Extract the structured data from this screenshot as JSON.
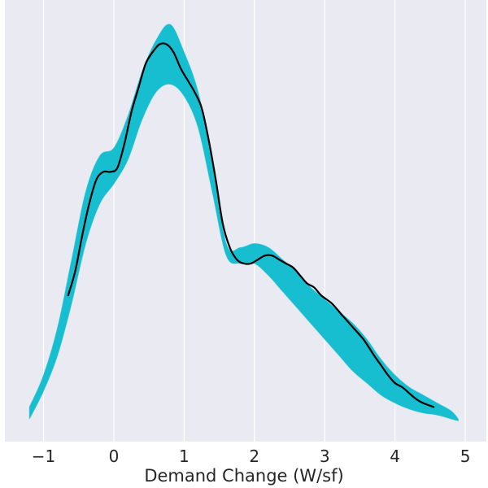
{
  "chart_data": {
    "type": "line",
    "title": "",
    "xlabel": "Demand Change (W/sf)",
    "ylabel": "",
    "xlim": [
      -1.55,
      5.3
    ],
    "ylim": [
      0,
      1
    ],
    "x_ticks": [
      -1,
      0,
      1,
      2,
      3,
      4,
      5
    ],
    "x_tick_labels": [
      "−1",
      "0",
      "1",
      "2",
      "3",
      "4",
      "5"
    ],
    "grid": true,
    "y_axis_ticks_visible": false,
    "colors": {
      "background": "#eaeaf2",
      "grid": "#ffffff",
      "band": "#17becf",
      "main_line": "#000000",
      "text": "#262626"
    },
    "band": {
      "name": "",
      "description_values_only": true,
      "x": [
        -1.2,
        -1.0,
        -0.8,
        -0.6,
        -0.4,
        -0.2,
        0.0,
        0.2,
        0.4,
        0.6,
        0.8,
        1.0,
        1.2,
        1.4,
        1.6,
        1.8,
        2.0,
        2.2,
        2.4,
        2.6,
        2.8,
        3.0,
        3.2,
        3.4,
        3.6,
        3.8,
        4.0,
        4.2,
        4.4,
        4.6,
        4.8,
        4.9
      ],
      "lower": [
        0.01,
        0.08,
        0.17,
        0.3,
        0.45,
        0.55,
        0.6,
        0.66,
        0.76,
        0.83,
        0.85,
        0.82,
        0.74,
        0.58,
        0.42,
        0.4,
        0.4,
        0.37,
        0.33,
        0.29,
        0.25,
        0.21,
        0.17,
        0.13,
        0.1,
        0.07,
        0.05,
        0.035,
        0.025,
        0.02,
        0.01,
        0.005
      ],
      "upper": [
        0.04,
        0.12,
        0.24,
        0.41,
        0.58,
        0.67,
        0.69,
        0.77,
        0.88,
        0.96,
        1.0,
        0.93,
        0.83,
        0.66,
        0.45,
        0.44,
        0.45,
        0.44,
        0.41,
        0.38,
        0.34,
        0.31,
        0.28,
        0.25,
        0.21,
        0.16,
        0.12,
        0.09,
        0.07,
        0.05,
        0.03,
        0.01
      ]
    },
    "series": [
      {
        "name": "",
        "x": [
          -0.65,
          -0.55,
          -0.45,
          -0.35,
          -0.25,
          -0.15,
          -0.05,
          0.05,
          0.15,
          0.25,
          0.35,
          0.45,
          0.55,
          0.65,
          0.75,
          0.85,
          0.95,
          1.05,
          1.15,
          1.25,
          1.35,
          1.45,
          1.55,
          1.65,
          1.75,
          1.85,
          1.95,
          2.05,
          2.15,
          2.25,
          2.35,
          2.45,
          2.55,
          2.65,
          2.75,
          2.85,
          2.95,
          3.1,
          3.25,
          3.4,
          3.55,
          3.7,
          3.8,
          3.9,
          4.0,
          4.1,
          4.2,
          4.3,
          4.4,
          4.55
        ],
        "y": [
          0.32,
          0.38,
          0.47,
          0.55,
          0.61,
          0.63,
          0.63,
          0.64,
          0.7,
          0.78,
          0.84,
          0.9,
          0.93,
          0.95,
          0.95,
          0.93,
          0.89,
          0.86,
          0.83,
          0.79,
          0.71,
          0.61,
          0.5,
          0.44,
          0.41,
          0.4,
          0.4,
          0.41,
          0.42,
          0.42,
          0.41,
          0.4,
          0.39,
          0.37,
          0.35,
          0.34,
          0.32,
          0.3,
          0.27,
          0.24,
          0.21,
          0.17,
          0.145,
          0.12,
          0.1,
          0.09,
          0.075,
          0.06,
          0.05,
          0.04
        ]
      }
    ]
  }
}
